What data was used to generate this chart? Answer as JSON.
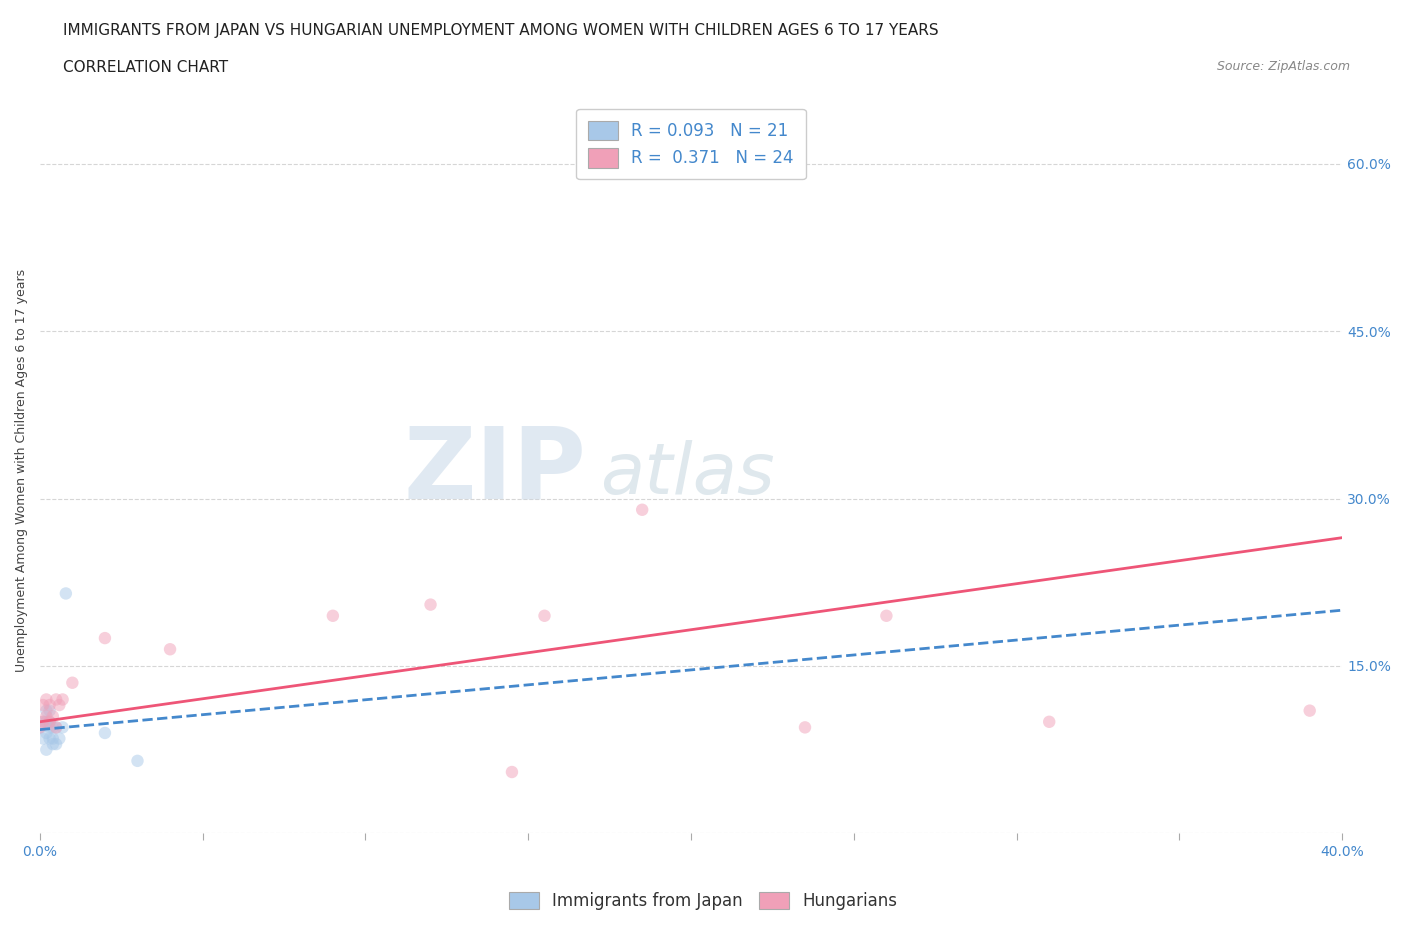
{
  "title_line1": "IMMIGRANTS FROM JAPAN VS HUNGARIAN UNEMPLOYMENT AMONG WOMEN WITH CHILDREN AGES 6 TO 17 YEARS",
  "title_line2": "CORRELATION CHART",
  "source_text": "Source: ZipAtlas.com",
  "ylabel_text": "Unemployment Among Women with Children Ages 6 to 17 years",
  "xlim": [
    0.0,
    0.4
  ],
  "ylim": [
    0.0,
    0.65
  ],
  "xticks": [
    0.0,
    0.05,
    0.1,
    0.15,
    0.2,
    0.25,
    0.3,
    0.35,
    0.4
  ],
  "xtick_labels": [
    "0.0%",
    "",
    "",
    "",
    "",
    "",
    "",
    "",
    "40.0%"
  ],
  "ytick_positions": [
    0.0,
    0.15,
    0.3,
    0.45,
    0.6
  ],
  "ytick_labels": [
    "",
    "15.0%",
    "30.0%",
    "45.0%",
    "60.0%"
  ],
  "watermark_zip": "ZIP",
  "watermark_atlas": "atlas",
  "grid_color": "#cccccc",
  "background_color": "#ffffff",
  "japan_color": "#a8c8e8",
  "hungarian_color": "#f0a0b8",
  "japan_line_color": "#4488cc",
  "hungarian_line_color": "#ee5577",
  "japan_r": 0.093,
  "japan_n": 21,
  "hungarian_r": 0.371,
  "hungarian_n": 24,
  "japan_scatter_x": [
    0.0,
    0.001,
    0.001,
    0.002,
    0.002,
    0.002,
    0.002,
    0.003,
    0.003,
    0.003,
    0.003,
    0.004,
    0.004,
    0.004,
    0.005,
    0.005,
    0.006,
    0.007,
    0.008,
    0.02,
    0.03
  ],
  "japan_scatter_y": [
    0.095,
    0.085,
    0.1,
    0.075,
    0.09,
    0.1,
    0.11,
    0.085,
    0.095,
    0.1,
    0.11,
    0.08,
    0.085,
    0.095,
    0.08,
    0.095,
    0.085,
    0.095,
    0.215,
    0.09,
    0.065
  ],
  "hungarian_scatter_x": [
    0.0,
    0.001,
    0.001,
    0.002,
    0.002,
    0.003,
    0.003,
    0.004,
    0.005,
    0.005,
    0.006,
    0.007,
    0.01,
    0.02,
    0.04,
    0.09,
    0.12,
    0.145,
    0.155,
    0.185,
    0.235,
    0.26,
    0.31,
    0.39
  ],
  "hungarian_scatter_y": [
    0.095,
    0.1,
    0.115,
    0.105,
    0.12,
    0.1,
    0.115,
    0.105,
    0.095,
    0.12,
    0.115,
    0.12,
    0.135,
    0.175,
    0.165,
    0.195,
    0.205,
    0.055,
    0.195,
    0.29,
    0.095,
    0.195,
    0.1,
    0.11
  ],
  "japan_trend_x": [
    0.0,
    0.4
  ],
  "japan_trend_y": [
    0.093,
    0.2
  ],
  "hungarian_trend_x": [
    0.0,
    0.4
  ],
  "hungarian_trend_y": [
    0.1,
    0.265
  ],
  "title_fontsize": 11,
  "subtitle_fontsize": 11,
  "axis_label_fontsize": 9,
  "tick_fontsize": 10,
  "legend_fontsize": 12,
  "scatter_size": 80,
  "scatter_alpha": 0.5
}
